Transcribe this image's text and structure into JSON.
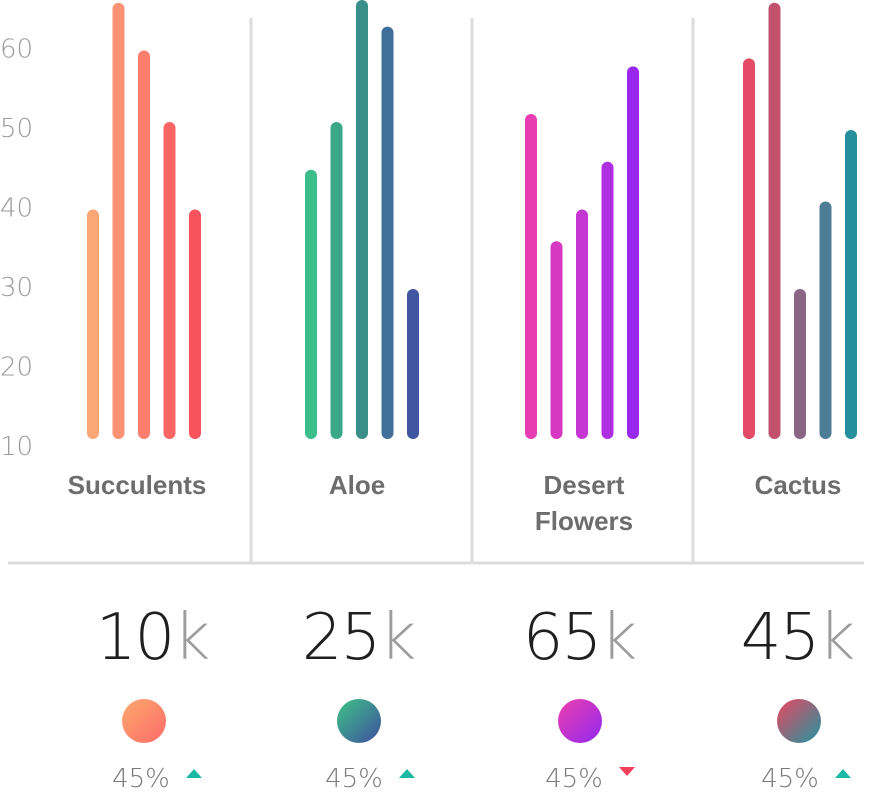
{
  "chart_data": {
    "type": "bar",
    "ylim": [
      10,
      65
    ],
    "yticks": [
      10,
      20,
      30,
      40,
      50,
      60
    ],
    "grid": false,
    "groups": [
      {
        "label_lines": [
          "Succulents"
        ],
        "values": [
          39,
          65,
          59,
          50,
          39
        ],
        "colors": [
          "#fba775",
          "#fd9274",
          "#fd7d6e",
          "#fb6665",
          "#f8525d"
        ]
      },
      {
        "label_lines": [
          "Aloe"
        ],
        "values": [
          44,
          50,
          66,
          62,
          29
        ],
        "colors": [
          "#3bbd8c",
          "#3aa888",
          "#3a8f8b",
          "#40709a",
          "#4056a0"
        ]
      },
      {
        "label_lines": [
          "Desert",
          "Flowers"
        ],
        "values": [
          51,
          35,
          39,
          45,
          57
        ],
        "colors": [
          "#e83cb3",
          "#d638c4",
          "#c437d3",
          "#b02fe0",
          "#9927ee"
        ]
      },
      {
        "label_lines": [
          "Cactus"
        ],
        "values": [
          58,
          65,
          29,
          40,
          49
        ],
        "colors": [
          "#e44b66",
          "#c2516e",
          "#8b6683",
          "#4c7c96",
          "#258f9e"
        ]
      }
    ]
  },
  "stats": [
    {
      "number": "10",
      "unit": "k",
      "percent": "45%",
      "trend": "up",
      "dot_colors": [
        "#fea96f",
        "#fc6b68"
      ]
    },
    {
      "number": "25",
      "unit": "k",
      "percent": "45%",
      "trend": "up",
      "dot_colors": [
        "#3cc383",
        "#3f4fa2"
      ]
    },
    {
      "number": "65",
      "unit": "k",
      "percent": "45%",
      "trend": "down",
      "dot_colors": [
        "#ee40ad",
        "#9027ef"
      ]
    },
    {
      "number": "45",
      "unit": "k",
      "percent": "45%",
      "trend": "up",
      "dot_colors": [
        "#ec4560",
        "#1f96a0"
      ]
    }
  ]
}
